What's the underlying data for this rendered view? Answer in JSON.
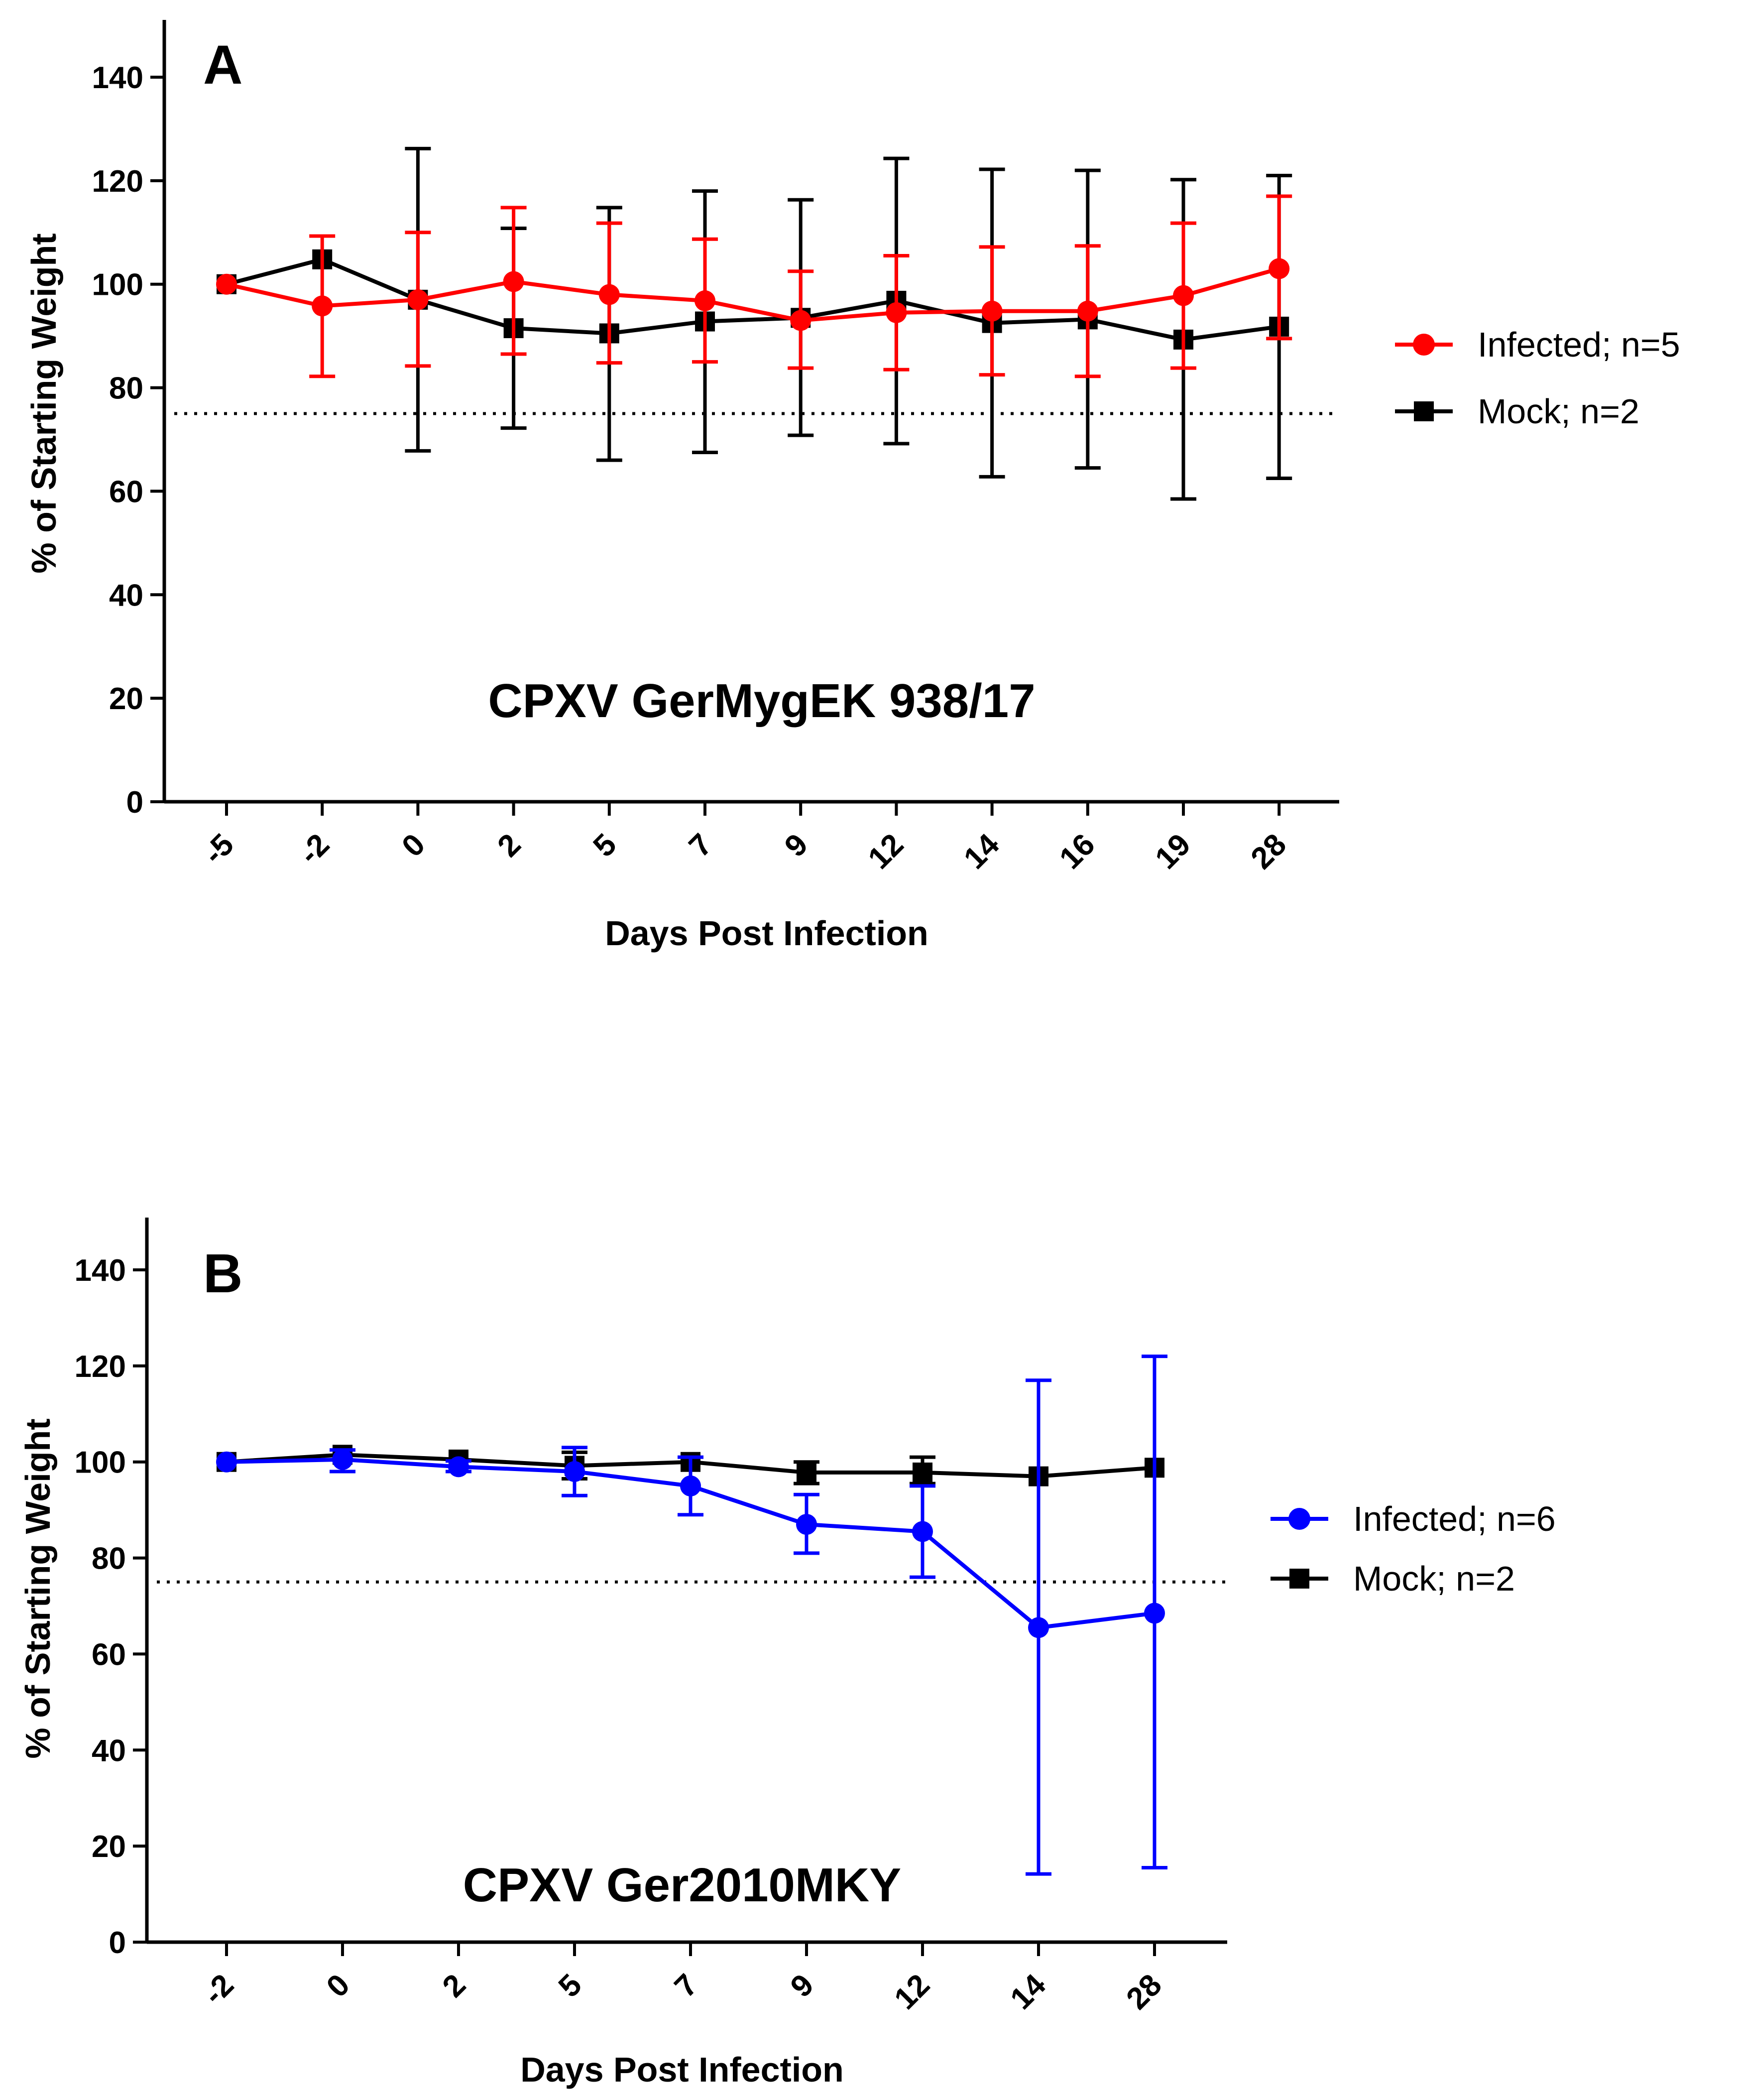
{
  "chart_data": [
    {
      "type": "line",
      "panel_label": "A",
      "annotation": "CPXV GerMygEK 938/17",
      "xlabel": "Days Post Infection",
      "ylabel": "% of Starting Weight",
      "categories": [
        "-5",
        "-2",
        "0",
        "2",
        "5",
        "7",
        "9",
        "12",
        "14",
        "16",
        "19",
        "28"
      ],
      "ylim": [
        0,
        150
      ],
      "yticks": [
        "0",
        "20",
        "40",
        "60",
        "80",
        "100",
        "120",
        "140"
      ],
      "threshold": 75,
      "legend_position": "right",
      "series": [
        {
          "name": "Infected; n=5",
          "color": "#ff0000",
          "marker": "circle",
          "values": [
            100,
            95.8,
            97,
            100.5,
            98,
            96.8,
            93,
            94.5,
            94.8,
            94.8,
            97.8,
            103
          ],
          "err_low": [
            100,
            82.2,
            84.2,
            86.5,
            84.8,
            85,
            83.8,
            83.5,
            82.5,
            82.2,
            83.8,
            89.5
          ],
          "err_high": [
            100,
            109.3,
            110,
            114.8,
            111.8,
            108.7,
            102.5,
            105.5,
            107.2,
            107.4,
            111.8,
            117
          ]
        },
        {
          "name": "Mock; n=2",
          "color": "#000000",
          "marker": "square",
          "values": [
            100,
            104.8,
            97,
            91.5,
            90.5,
            92.8,
            93.5,
            96.8,
            92.5,
            93.2,
            89.3,
            91.8
          ],
          "err_low": [
            100,
            104.8,
            67.8,
            72.2,
            66,
            67.5,
            70.8,
            69.2,
            62.8,
            64.5,
            58.5,
            62.5
          ],
          "err_high": [
            100,
            104.8,
            126.2,
            110.8,
            114.8,
            118,
            116.3,
            124.3,
            122.2,
            122,
            120.2,
            121
          ]
        }
      ]
    },
    {
      "type": "line",
      "panel_label": "B",
      "annotation": "CPXV Ger2010MKY",
      "xlabel": "Days Post Infection",
      "ylabel": "% of Starting Weight",
      "categories": [
        "-2",
        "0",
        "2",
        "5",
        "7",
        "9",
        "12",
        "14",
        "28"
      ],
      "ylim": [
        0,
        150
      ],
      "yticks": [
        "0",
        "20",
        "40",
        "60",
        "80",
        "100",
        "120",
        "140"
      ],
      "threshold": 75,
      "legend_position": "right",
      "series": [
        {
          "name": "Infected; n=6",
          "color": "#0000ff",
          "marker": "circle",
          "values": [
            100,
            100.5,
            99,
            98,
            95,
            87,
            85.5,
            65.5,
            68.5
          ],
          "err_low": [
            100,
            98,
            98,
            93,
            89,
            81,
            76,
            14.2,
            15.5
          ],
          "err_high": [
            100,
            102.5,
            100.2,
            103,
            101,
            93.2,
            95,
            117,
            122
          ]
        },
        {
          "name": "Mock; n=2",
          "color": "#000000",
          "marker": "square",
          "values": [
            100,
            101.5,
            100.5,
            99.2,
            100,
            97.8,
            97.8,
            97,
            98.8
          ],
          "err_low": [
            100,
            101.5,
            100.5,
            96.5,
            100,
            95.5,
            95.5,
            97,
            98.8
          ],
          "err_high": [
            100,
            101.5,
            100.5,
            102,
            100,
            100,
            101,
            97,
            98.8
          ]
        }
      ]
    }
  ]
}
